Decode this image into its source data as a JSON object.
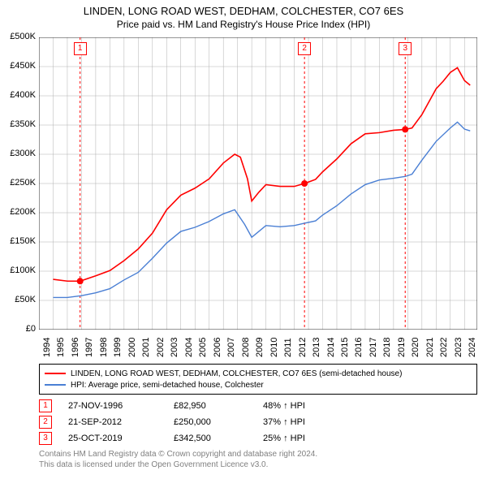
{
  "title1": "LINDEN, LONG ROAD WEST, DEDHAM, COLCHESTER, CO7 6ES",
  "title2": "Price paid vs. HM Land Registry's House Price Index (HPI)",
  "chart": {
    "type": "line",
    "background_color": "#ffffff",
    "grid_color": "#b0b0b0",
    "grid_stroke_width": 0.5,
    "x_years": [
      1994,
      1995,
      1996,
      1997,
      1998,
      1999,
      2000,
      2001,
      2002,
      2003,
      2004,
      2005,
      2006,
      2007,
      2008,
      2009,
      2010,
      2011,
      2012,
      2013,
      2014,
      2015,
      2016,
      2017,
      2018,
      2019,
      2020,
      2021,
      2022,
      2023,
      2024
    ],
    "xlim": [
      1994,
      2024.9
    ],
    "ylim": [
      0,
      500000
    ],
    "ytick_step": 50000,
    "ytick_labels": [
      "£0",
      "£50K",
      "£100K",
      "£150K",
      "£200K",
      "£250K",
      "£300K",
      "£350K",
      "£400K",
      "£450K",
      "£500K"
    ],
    "series": [
      {
        "name": "LINDEN, LONG ROAD WEST, DEDHAM, COLCHESTER, CO7 6ES (semi-detached house)",
        "color": "#ff0000",
        "stroke_width": 1.6,
        "points": [
          [
            1995.0,
            86000
          ],
          [
            1996.0,
            83000
          ],
          [
            1996.9,
            82950
          ],
          [
            1998.0,
            92000
          ],
          [
            1999.0,
            101000
          ],
          [
            2000.0,
            118000
          ],
          [
            2001.0,
            138000
          ],
          [
            2002.0,
            165000
          ],
          [
            2003.0,
            205000
          ],
          [
            2004.0,
            230000
          ],
          [
            2005.0,
            242000
          ],
          [
            2006.0,
            258000
          ],
          [
            2007.0,
            285000
          ],
          [
            2007.8,
            300000
          ],
          [
            2008.2,
            295000
          ],
          [
            2008.7,
            258000
          ],
          [
            2009.0,
            220000
          ],
          [
            2009.5,
            235000
          ],
          [
            2010.0,
            248000
          ],
          [
            2011.0,
            245000
          ],
          [
            2012.0,
            245000
          ],
          [
            2012.72,
            250000
          ],
          [
            2013.5,
            257000
          ],
          [
            2014.0,
            270000
          ],
          [
            2015.0,
            292000
          ],
          [
            2016.0,
            318000
          ],
          [
            2017.0,
            335000
          ],
          [
            2018.0,
            337000
          ],
          [
            2019.0,
            341000
          ],
          [
            2019.82,
            342500
          ],
          [
            2020.3,
            345000
          ],
          [
            2021.0,
            368000
          ],
          [
            2022.0,
            412000
          ],
          [
            2022.5,
            425000
          ],
          [
            2023.0,
            440000
          ],
          [
            2023.5,
            448000
          ],
          [
            2024.0,
            426000
          ],
          [
            2024.4,
            418000
          ]
        ]
      },
      {
        "name": "HPI: Average price, semi-detached house, Colchester",
        "color": "#4a7fd4",
        "stroke_width": 1.4,
        "points": [
          [
            1995.0,
            55000
          ],
          [
            1996.0,
            55000
          ],
          [
            1997.0,
            58000
          ],
          [
            1998.0,
            63000
          ],
          [
            1999.0,
            70000
          ],
          [
            2000.0,
            85000
          ],
          [
            2001.0,
            98000
          ],
          [
            2002.0,
            122000
          ],
          [
            2003.0,
            148000
          ],
          [
            2004.0,
            168000
          ],
          [
            2005.0,
            175000
          ],
          [
            2006.0,
            185000
          ],
          [
            2007.0,
            198000
          ],
          [
            2007.8,
            205000
          ],
          [
            2008.5,
            180000
          ],
          [
            2009.0,
            158000
          ],
          [
            2009.5,
            168000
          ],
          [
            2010.0,
            178000
          ],
          [
            2011.0,
            176000
          ],
          [
            2012.0,
            178000
          ],
          [
            2012.72,
            182000
          ],
          [
            2013.5,
            186000
          ],
          [
            2014.0,
            196000
          ],
          [
            2015.0,
            212000
          ],
          [
            2016.0,
            232000
          ],
          [
            2017.0,
            248000
          ],
          [
            2018.0,
            256000
          ],
          [
            2019.0,
            259000
          ],
          [
            2019.82,
            262000
          ],
          [
            2020.3,
            266000
          ],
          [
            2021.0,
            290000
          ],
          [
            2022.0,
            322000
          ],
          [
            2023.0,
            345000
          ],
          [
            2023.5,
            355000
          ],
          [
            2024.0,
            343000
          ],
          [
            2024.4,
            340000
          ]
        ]
      }
    ],
    "events": [
      {
        "num": "1",
        "year": 1996.9,
        "value": 82950,
        "date": "27-NOV-1996",
        "price": "£82,950",
        "pct": "48% ↑ HPI"
      },
      {
        "num": "2",
        "year": 2012.72,
        "value": 250000,
        "date": "21-SEP-2012",
        "price": "£250,000",
        "pct": "37% ↑ HPI"
      },
      {
        "num": "3",
        "year": 2019.82,
        "value": 342500,
        "date": "25-OCT-2019",
        "price": "£342,500",
        "pct": "25% ↑ HPI"
      }
    ],
    "event_line_color": "#ff0000",
    "event_line_dash": "3,3",
    "event_marker_fill": "#ff0000"
  },
  "legend": [
    {
      "color": "#ff0000",
      "text": "LINDEN, LONG ROAD WEST, DEDHAM, COLCHESTER, CO7 6ES (semi-detached house)"
    },
    {
      "color": "#4a7fd4",
      "text": "HPI: Average price, semi-detached house, Colchester"
    }
  ],
  "footer1": "Contains HM Land Registry data © Crown copyright and database right 2024.",
  "footer2": "This data is licensed under the Open Government Licence v3.0."
}
